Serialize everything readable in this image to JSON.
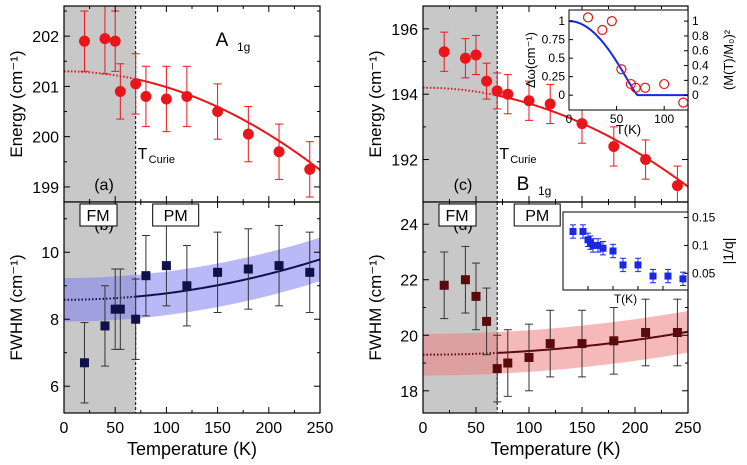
{
  "chart_data": [
    {
      "id": "a",
      "type": "scatter",
      "panel_label": "(a)",
      "mode_label": "A",
      "mode_sub": "1g",
      "ylabel": "Energy (cm⁻¹)",
      "xlabel": "",
      "xlim": [
        0,
        250
      ],
      "ylim": [
        198.7,
        202.6
      ],
      "yticks": [
        199,
        200,
        201,
        202
      ],
      "curie_T": 70,
      "curie_label": "T",
      "curie_sub": "Curie",
      "series": [
        {
          "x": [
            20,
            40,
            50,
            55,
            70,
            80,
            100,
            120,
            150,
            180,
            210,
            240
          ],
          "y": [
            201.9,
            201.95,
            201.9,
            200.9,
            201.05,
            200.8,
            200.75,
            200.8,
            200.5,
            200.05,
            199.7,
            199.35
          ],
          "err": [
            0.6,
            0.7,
            0.6,
            0.55,
            0.6,
            0.6,
            0.65,
            0.6,
            0.55,
            0.55,
            0.55,
            0.55
          ],
          "color": "#e8161a",
          "marker": "circle"
        }
      ],
      "fit": {
        "x": [
          0,
          250
        ],
        "a": 201.3,
        "b": 3.14e-05,
        "solid_from": 70
      }
    },
    {
      "id": "b",
      "type": "scatter",
      "panel_label": "(b)",
      "ylabel": "FWHM (cm⁻¹)",
      "xlabel": "Temperature (K)",
      "xlim": [
        0,
        250
      ],
      "ylim": [
        5.2,
        11.5
      ],
      "yticks": [
        6,
        8,
        10
      ],
      "xticks": [
        0,
        50,
        100,
        150,
        200,
        250
      ],
      "curie_T": 70,
      "phase_labels": [
        "FM",
        "PM"
      ],
      "series": [
        {
          "x": [
            20,
            40,
            50,
            55,
            70,
            80,
            100,
            120,
            150,
            180,
            210,
            240
          ],
          "y": [
            6.7,
            7.8,
            8.3,
            8.3,
            8.0,
            9.3,
            9.6,
            9.0,
            9.4,
            9.5,
            9.6,
            9.4
          ],
          "err": [
            1.2,
            1.2,
            1.2,
            1.2,
            1.2,
            1.2,
            1.2,
            1.2,
            1.2,
            1.2,
            1.2,
            1.2
          ],
          "color": "#10104a",
          "marker": "square"
        }
      ],
      "fit": {
        "x": [
          0,
          250
        ],
        "a": 8.58,
        "b": 1.93e-05,
        "solid_from": 70,
        "band": 0.65,
        "band_color": "#8080f0"
      }
    },
    {
      "id": "c",
      "type": "scatter",
      "panel_label": "(c)",
      "mode_label": "B",
      "mode_sub": "1g",
      "ylabel": "Energy (cm⁻¹)",
      "xlabel": "",
      "xlim": [
        0,
        250
      ],
      "ylim": [
        190.7,
        196.7
      ],
      "yticks": [
        192,
        194,
        196
      ],
      "curie_T": 70,
      "curie_label": "T",
      "curie_sub": "Curie",
      "series": [
        {
          "x": [
            20,
            40,
            50,
            60,
            70,
            80,
            100,
            120,
            150,
            180,
            210,
            240
          ],
          "y": [
            195.3,
            195.1,
            195.2,
            194.4,
            194.1,
            194.0,
            193.8,
            193.7,
            193.1,
            192.4,
            192.0,
            191.2
          ],
          "err": [
            0.6,
            0.6,
            0.6,
            0.55,
            0.55,
            0.6,
            0.6,
            0.6,
            0.6,
            0.6,
            0.6,
            0.6
          ],
          "color": "#e8161a",
          "marker": "circle"
        }
      ],
      "fit": {
        "x": [
          0,
          250
        ],
        "a": 194.2,
        "b": 4.85e-05,
        "solid_from": 70
      }
    },
    {
      "id": "c_inset",
      "type": "scatter",
      "ylabel": "Δω(cm⁻¹)",
      "ylabel_right": "(M(T)/M₀)²",
      "xlabel": "T(K)",
      "xlim": [
        0,
        125
      ],
      "ylim": [
        -0.2,
        1.15
      ],
      "yticks": [
        0,
        0.25,
        0.5,
        0.75,
        1.0
      ],
      "yticks_right": [
        0.0,
        0.2,
        0.4,
        0.6,
        0.8,
        1.0
      ],
      "xticks": [
        0,
        50,
        100
      ],
      "series": [
        {
          "x": [
            20,
            35,
            45,
            55,
            65,
            70,
            80,
            100,
            120
          ],
          "y": [
            1.05,
            0.88,
            1.0,
            0.35,
            0.15,
            0.1,
            0.1,
            0.15,
            -0.1
          ],
          "color": "#e8161a",
          "marker": "open-circle"
        }
      ],
      "curve": {
        "Tc": 72,
        "color": "#1a28e0"
      }
    },
    {
      "id": "d",
      "type": "scatter",
      "panel_label": "(d)",
      "ylabel": "FWHM (cm⁻¹)",
      "xlabel": "Temperature (K)",
      "xlim": [
        0,
        250
      ],
      "ylim": [
        17.2,
        24.8
      ],
      "yticks": [
        18,
        20,
        22,
        24
      ],
      "xticks": [
        0,
        50,
        100,
        150,
        200,
        250
      ],
      "curie_T": 70,
      "phase_labels": [
        "FM",
        "PM"
      ],
      "series": [
        {
          "x": [
            20,
            40,
            50,
            60,
            70,
            80,
            100,
            120,
            150,
            180,
            210,
            240
          ],
          "y": [
            21.8,
            22.0,
            21.4,
            20.5,
            18.8,
            19.0,
            19.2,
            19.7,
            19.7,
            19.8,
            20.1,
            20.1
          ],
          "err": [
            1.2,
            1.2,
            1.2,
            1.2,
            1.2,
            1.2,
            1.2,
            1.2,
            1.2,
            1.2,
            1.2,
            1.2
          ],
          "color": "#5a0a0a",
          "marker": "square"
        }
      ],
      "fit": {
        "x": [
          0,
          250
        ],
        "a": 19.3,
        "b": 1.32e-05,
        "solid_from": 70,
        "band": 0.75,
        "band_color": "#ee8080"
      }
    },
    {
      "id": "d_inset",
      "type": "scatter",
      "ylabel_right": "|1/q|",
      "xlabel": "T(K)",
      "xlim": [
        0,
        250
      ],
      "ylim": [
        0.02,
        0.16
      ],
      "yticks_right": [
        0.05,
        0.1,
        0.15
      ],
      "xticks": [
        0,
        50,
        100,
        150,
        200,
        250
      ],
      "series": [
        {
          "x": [
            20,
            40,
            50,
            55,
            60,
            70,
            80,
            100,
            120,
            150,
            180,
            210,
            240
          ],
          "y": [
            0.125,
            0.125,
            0.11,
            0.105,
            0.1,
            0.1,
            0.095,
            0.09,
            0.065,
            0.065,
            0.045,
            0.045,
            0.04
          ],
          "err": [
            0.012,
            0.012,
            0.012,
            0.012,
            0.012,
            0.012,
            0.012,
            0.012,
            0.012,
            0.012,
            0.012,
            0.012,
            0.012
          ],
          "color": "#1a28e0",
          "marker": "square"
        }
      ]
    }
  ]
}
